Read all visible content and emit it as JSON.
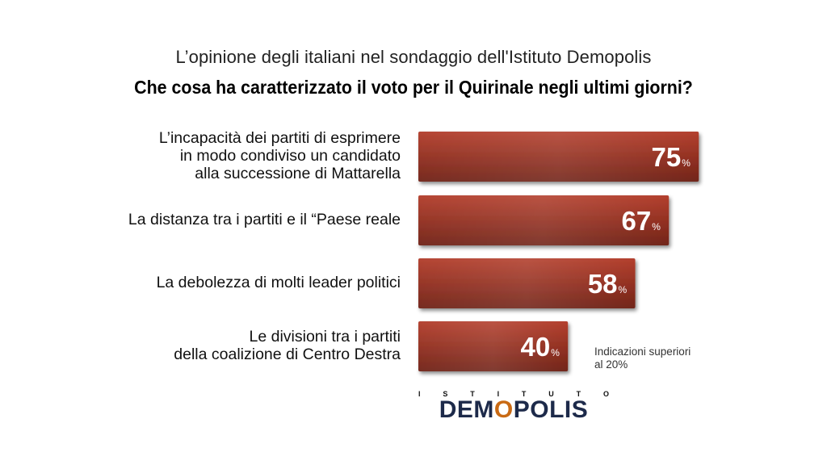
{
  "subtitle": "L’opinione degli italiani nel sondaggio dell'Istituto Demopolis",
  "title": "Che cosa ha caratterizzato il voto per il Quirinale negli ultimi giorni?",
  "note": "Indicazioni superiori\nal 20%",
  "logo": {
    "top_letters": [
      "I",
      "S",
      "T",
      "I",
      "T",
      "U",
      "T",
      "O"
    ],
    "main_before": "DEM",
    "main_o": "O",
    "main_after": "POLIS"
  },
  "colors": {
    "bar": "#8e2b1c",
    "bar_light": "#b03a28",
    "bar_dark": "#6a1d12",
    "value_text": "#ffffff"
  },
  "chart_data": {
    "type": "bar",
    "orientation": "horizontal",
    "title": "Che cosa ha caratterizzato il voto per il Quirinale negli ultimi giorni?",
    "categories": [
      "L’incapacità dei partiti di esprimere\nin modo condiviso un candidato\nalla successione di Mattarella",
      "La distanza tra i partiti e il “Paese reale",
      "La debolezza di molti leader politici",
      "Le divisioni tra i partiti\ndella coalizione di Centro Destra"
    ],
    "values": [
      75,
      67,
      58,
      40
    ],
    "unit": "%",
    "xlim": [
      0,
      100
    ],
    "grid": false,
    "legend": "none"
  }
}
